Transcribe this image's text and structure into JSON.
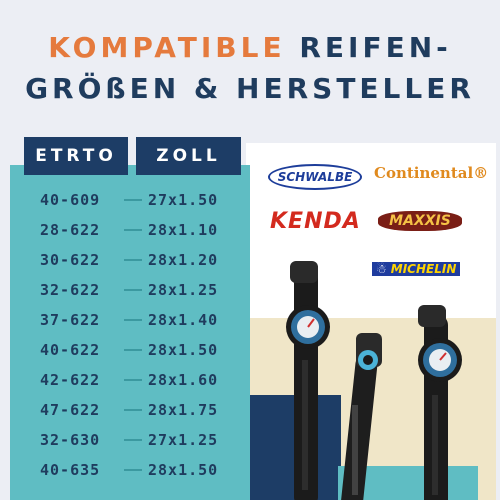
{
  "title": {
    "line1_accent": "KOMPATIBLE",
    "line1_rest": "REIFEN-",
    "line2": "GRÖßEN & HERSTELLER"
  },
  "table": {
    "headers": {
      "etrto": "ETRTO",
      "zoll": "ZOLL"
    },
    "rows": [
      {
        "etrto": "40-609",
        "zoll": "27x1.50"
      },
      {
        "etrto": "28-622",
        "zoll": "28x1.10"
      },
      {
        "etrto": "30-622",
        "zoll": "28x1.20"
      },
      {
        "etrto": "32-622",
        "zoll": "28x1.25"
      },
      {
        "etrto": "37-622",
        "zoll": "28x1.40"
      },
      {
        "etrto": "40-622",
        "zoll": "28x1.50"
      },
      {
        "etrto": "42-622",
        "zoll": "28x1.60"
      },
      {
        "etrto": "47-622",
        "zoll": "28x1.75"
      },
      {
        "etrto": "32-630",
        "zoll": "27x1.25"
      },
      {
        "etrto": "40-635",
        "zoll": "28x1.50"
      }
    ]
  },
  "brands": {
    "schwalbe": "SCHWALBE",
    "continental": "Continental",
    "kenda": "KENDA",
    "maxxis": "MAXXIS",
    "michelin": "MICHELIN"
  },
  "colors": {
    "accent": "#e57a3d",
    "navy": "#1d3d66",
    "teal": "#5fbdc3"
  }
}
